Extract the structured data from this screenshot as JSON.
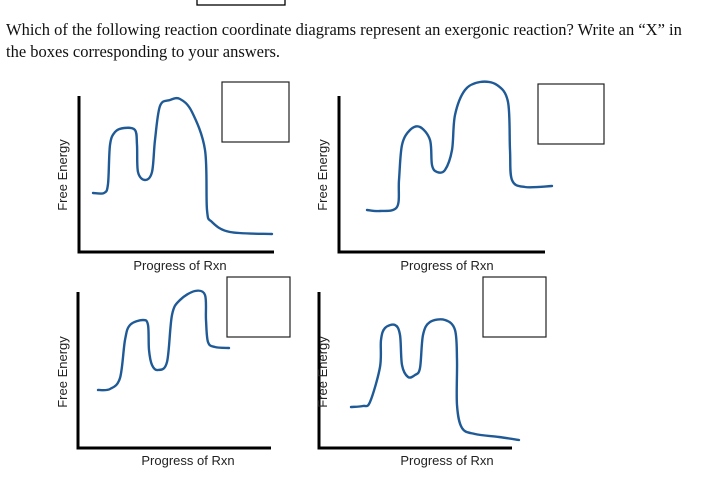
{
  "question": {
    "line1": "Which of the following reaction coordinate diagrams represent an exergonic reaction? Write an “X” in",
    "line2": "the boxes corresponding to your answers."
  },
  "diagrams": [
    {
      "x_label": "Progress of Rxn",
      "y_label": "Free Energy",
      "answer_box": ""
    },
    {
      "x_label": "Progress of Rxn",
      "y_label": "Free Energy",
      "answer_box": ""
    },
    {
      "x_label": "Progress of Rxn",
      "y_label": "Free Energy",
      "answer_box": ""
    },
    {
      "x_label": "Progress of Rxn",
      "y_label": "Free Energy",
      "answer_box": ""
    }
  ],
  "colors": {
    "curve": "#1f5a96",
    "axis": "#000000"
  }
}
